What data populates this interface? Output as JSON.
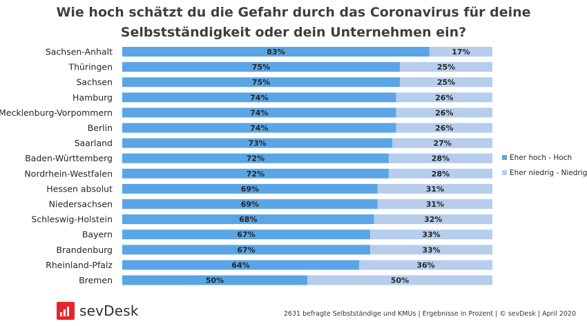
{
  "title": {
    "line1": "Wie hoch schätzt du die Gefahr durch das Coronavirus für deine",
    "line2": "Selbstständigkeit oder dein Unternehmen ein?"
  },
  "colors": {
    "high": "#5aa5e6",
    "low": "#b6cdec"
  },
  "chart_data": {
    "type": "bar",
    "orientation": "horizontal",
    "stacked": true,
    "unit": "%",
    "title": "Wie hoch schätzt du die Gefahr durch das Coronavirus für deine Selbstständigkeit oder dein Unternehmen ein?",
    "xlim": [
      0,
      100
    ],
    "legend_position": "right",
    "categories": [
      "Sachsen-Anhalt",
      "Thüringen",
      "Sachsen",
      "Hamburg",
      "Mecklenburg-Vorpommern",
      "Berlin",
      "Saarland",
      "Baden-Württemberg",
      "Nordrhein-Westfalen",
      "Hessen absolut",
      "Niedersachsen",
      "Schleswig-Holstein",
      "Bayern",
      "Brandenburg",
      "Rheinland-Pfalz",
      "Bremen"
    ],
    "series": [
      {
        "name": "Eher hoch - Hoch",
        "values": [
          83,
          75,
          75,
          74,
          74,
          74,
          73,
          72,
          72,
          69,
          69,
          68,
          67,
          67,
          64,
          50
        ]
      },
      {
        "name": "Eher niedrig - Niedrig",
        "values": [
          17,
          25,
          25,
          26,
          26,
          26,
          27,
          28,
          28,
          31,
          31,
          32,
          33,
          33,
          36,
          50
        ]
      }
    ]
  },
  "brand": {
    "name": "sevDesk"
  },
  "footnote": "2631 befragte Selbstständige und KMUs | Ergebnisse in Prozent | © sevDesk | April 2020"
}
